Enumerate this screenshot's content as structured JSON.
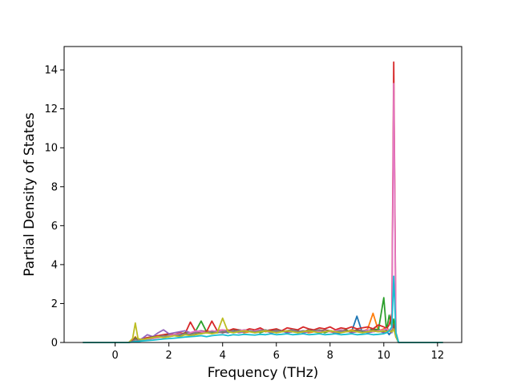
{
  "chart_data": {
    "type": "line",
    "title": "",
    "xlabel": "Frequency (THz)",
    "ylabel": "Partial Density of States",
    "xlim": [
      -1.9,
      12.9
    ],
    "ylim": [
      0,
      15.2
    ],
    "xticks": [
      0,
      2,
      4,
      6,
      8,
      10,
      12
    ],
    "yticks": [
      0,
      2,
      4,
      6,
      8,
      10,
      12,
      14
    ],
    "grid": false,
    "legend": "none",
    "x": [
      -1.2,
      0.5,
      0.65,
      0.75,
      0.85,
      1.0,
      1.2,
      1.4,
      1.6,
      1.8,
      2.0,
      2.2,
      2.4,
      2.6,
      2.8,
      3.0,
      3.2,
      3.4,
      3.6,
      3.8,
      4.0,
      4.2,
      4.4,
      4.6,
      4.8,
      5.0,
      5.2,
      5.4,
      5.6,
      5.8,
      6.0,
      6.2,
      6.4,
      6.6,
      6.8,
      7.0,
      7.2,
      7.4,
      7.6,
      7.8,
      8.0,
      8.2,
      8.4,
      8.6,
      8.8,
      9.0,
      9.2,
      9.4,
      9.6,
      9.8,
      10.0,
      10.1,
      10.2,
      10.3,
      10.37,
      10.45,
      10.55,
      10.7,
      12.2
    ],
    "series": [
      {
        "color": "#1f77b4",
        "values": [
          0,
          0,
          0.05,
          0.2,
          0.05,
          0.1,
          0.2,
          0.25,
          0.3,
          0.35,
          0.3,
          0.4,
          0.35,
          0.45,
          0.4,
          0.5,
          0.45,
          0.55,
          0.5,
          0.6,
          0.55,
          0.5,
          0.6,
          0.55,
          0.65,
          0.6,
          0.55,
          0.65,
          0.6,
          0.5,
          0.55,
          0.6,
          0.5,
          0.55,
          0.6,
          0.5,
          0.55,
          0.6,
          0.5,
          0.55,
          0.6,
          0.45,
          0.5,
          0.6,
          0.55,
          1.35,
          0.5,
          0.6,
          0.55,
          0.7,
          0.5,
          0.6,
          0.4,
          0.6,
          0.9,
          0.3,
          0,
          0,
          0
        ]
      },
      {
        "color": "#ff7f0e",
        "values": [
          0,
          0,
          0.1,
          0.3,
          0.1,
          0.15,
          0.25,
          0.3,
          0.35,
          0.3,
          0.4,
          0.35,
          0.45,
          0.4,
          0.5,
          0.55,
          0.5,
          0.6,
          0.55,
          0.5,
          0.6,
          0.65,
          0.55,
          0.6,
          0.5,
          0.55,
          0.6,
          0.65,
          0.55,
          0.6,
          0.5,
          0.55,
          0.6,
          0.65,
          0.55,
          0.6,
          0.5,
          0.55,
          0.65,
          0.6,
          0.55,
          0.5,
          0.6,
          0.55,
          0.65,
          0.6,
          0.55,
          0.7,
          1.5,
          0.6,
          0.7,
          0.8,
          0.6,
          0.7,
          1.1,
          0.4,
          0,
          0,
          0
        ]
      },
      {
        "color": "#2ca02c",
        "values": [
          0,
          0,
          0.05,
          0.25,
          0.1,
          0.15,
          0.2,
          0.25,
          0.3,
          0.35,
          0.4,
          0.35,
          0.4,
          0.5,
          0.45,
          0.6,
          1.1,
          0.55,
          0.5,
          0.6,
          0.55,
          0.6,
          0.65,
          0.55,
          0.6,
          0.55,
          0.6,
          0.5,
          0.6,
          0.65,
          0.55,
          0.6,
          0.55,
          0.6,
          0.5,
          0.6,
          0.55,
          0.65,
          0.6,
          0.5,
          0.6,
          0.55,
          0.6,
          0.65,
          0.5,
          0.6,
          0.55,
          0.6,
          0.7,
          0.65,
          2.3,
          0.6,
          1.4,
          0.8,
          1.2,
          0.5,
          0,
          0,
          0
        ]
      },
      {
        "color": "#d62728",
        "values": [
          0,
          0,
          0.1,
          0.2,
          0.1,
          0.2,
          0.25,
          0.3,
          0.35,
          0.4,
          0.45,
          0.4,
          0.5,
          0.45,
          1.05,
          0.55,
          0.6,
          0.55,
          1.1,
          0.6,
          0.65,
          0.6,
          0.7,
          0.65,
          0.6,
          0.7,
          0.65,
          0.75,
          0.6,
          0.65,
          0.7,
          0.6,
          0.75,
          0.7,
          0.65,
          0.8,
          0.7,
          0.65,
          0.75,
          0.7,
          0.8,
          0.65,
          0.75,
          0.7,
          0.8,
          0.7,
          0.75,
          0.8,
          0.7,
          0.9,
          0.8,
          0.7,
          0.9,
          1.5,
          14.4,
          0.5,
          0,
          0,
          0
        ]
      },
      {
        "color": "#9467bd",
        "values": [
          0,
          0,
          0.05,
          0.15,
          0.1,
          0.2,
          0.4,
          0.3,
          0.5,
          0.65,
          0.45,
          0.5,
          0.55,
          0.6,
          0.5,
          0.55,
          0.6,
          0.5,
          0.55,
          0.6,
          0.5,
          0.55,
          0.6,
          0.5,
          0.55,
          0.6,
          0.5,
          0.55,
          0.6,
          0.5,
          0.55,
          0.6,
          0.5,
          0.55,
          0.6,
          0.5,
          0.55,
          0.6,
          0.5,
          0.55,
          0.6,
          0.5,
          0.55,
          0.6,
          0.5,
          0.55,
          0.6,
          0.5,
          0.55,
          0.6,
          0.5,
          0.55,
          0.6,
          0.5,
          0.8,
          0.3,
          0,
          0,
          0
        ]
      },
      {
        "color": "#8c564b",
        "values": [
          0,
          0,
          0.05,
          0.2,
          0.1,
          0.15,
          0.2,
          0.3,
          0.25,
          0.35,
          0.3,
          0.4,
          0.45,
          0.4,
          0.5,
          0.45,
          0.55,
          0.5,
          0.6,
          0.55,
          0.5,
          0.6,
          0.55,
          0.65,
          0.6,
          0.55,
          0.6,
          0.65,
          0.6,
          0.55,
          0.65,
          0.6,
          0.55,
          0.65,
          0.6,
          0.55,
          0.65,
          0.6,
          0.55,
          0.65,
          0.6,
          0.55,
          0.65,
          0.6,
          0.55,
          0.65,
          0.6,
          0.55,
          0.65,
          0.6,
          0.55,
          0.65,
          0.6,
          0.55,
          0.9,
          0.3,
          0,
          0,
          0
        ]
      },
      {
        "color": "#e377c2",
        "values": [
          0,
          0,
          0.05,
          0.1,
          0.05,
          0.1,
          0.15,
          0.2,
          0.25,
          0.3,
          0.35,
          0.4,
          0.45,
          0.4,
          0.5,
          0.6,
          0.55,
          0.5,
          0.6,
          0.55,
          0.65,
          0.6,
          0.55,
          0.6,
          0.65,
          0.55,
          0.6,
          0.65,
          0.6,
          0.55,
          0.6,
          0.55,
          0.6,
          0.65,
          0.55,
          0.6,
          0.55,
          0.6,
          0.55,
          0.6,
          0.55,
          0.6,
          0.65,
          0.55,
          0.6,
          0.55,
          0.6,
          0.65,
          0.55,
          0.6,
          0.65,
          0.7,
          0.6,
          0.7,
          13.3,
          0.4,
          0,
          0,
          0
        ]
      },
      {
        "color": "#7f7f7f",
        "values": [
          0,
          0,
          0.05,
          0.15,
          0.1,
          0.15,
          0.2,
          0.25,
          0.3,
          0.35,
          0.3,
          0.35,
          0.4,
          0.45,
          0.4,
          0.5,
          0.45,
          0.5,
          0.55,
          0.5,
          0.55,
          0.6,
          0.55,
          0.6,
          0.55,
          0.6,
          0.55,
          0.6,
          0.65,
          0.55,
          0.6,
          0.55,
          0.6,
          0.65,
          0.55,
          0.6,
          0.55,
          0.6,
          0.65,
          0.55,
          0.6,
          0.55,
          0.6,
          0.55,
          0.6,
          0.55,
          0.6,
          0.55,
          0.6,
          0.55,
          0.6,
          0.55,
          0.6,
          0.55,
          0.7,
          0.3,
          0,
          0,
          0
        ]
      },
      {
        "color": "#bcbd22",
        "values": [
          0,
          0,
          0.2,
          1.0,
          0.2,
          0.15,
          0.2,
          0.25,
          0.3,
          0.25,
          0.3,
          0.35,
          0.3,
          0.4,
          0.35,
          0.4,
          0.45,
          0.5,
          0.45,
          0.5,
          1.25,
          0.55,
          0.5,
          0.55,
          0.6,
          0.55,
          0.5,
          0.55,
          0.6,
          0.55,
          0.5,
          0.55,
          0.6,
          0.55,
          0.5,
          0.55,
          0.6,
          0.55,
          0.5,
          0.55,
          0.6,
          0.55,
          0.5,
          0.55,
          0.6,
          0.55,
          0.5,
          0.55,
          0.6,
          0.55,
          0.6,
          0.55,
          0.6,
          0.55,
          0.7,
          0.3,
          0,
          0,
          0
        ]
      },
      {
        "color": "#17becf",
        "values": [
          0,
          0,
          0.02,
          0.05,
          0.05,
          0.08,
          0.1,
          0.12,
          0.15,
          0.18,
          0.2,
          0.22,
          0.25,
          0.28,
          0.3,
          0.32,
          0.35,
          0.3,
          0.35,
          0.38,
          0.4,
          0.35,
          0.4,
          0.38,
          0.42,
          0.4,
          0.38,
          0.42,
          0.4,
          0.45,
          0.4,
          0.42,
          0.45,
          0.4,
          0.42,
          0.45,
          0.4,
          0.42,
          0.45,
          0.4,
          0.42,
          0.45,
          0.4,
          0.42,
          0.45,
          0.4,
          0.42,
          0.45,
          0.4,
          0.42,
          0.45,
          0.5,
          0.6,
          0.8,
          3.4,
          0.5,
          0,
          0,
          0
        ]
      }
    ]
  }
}
